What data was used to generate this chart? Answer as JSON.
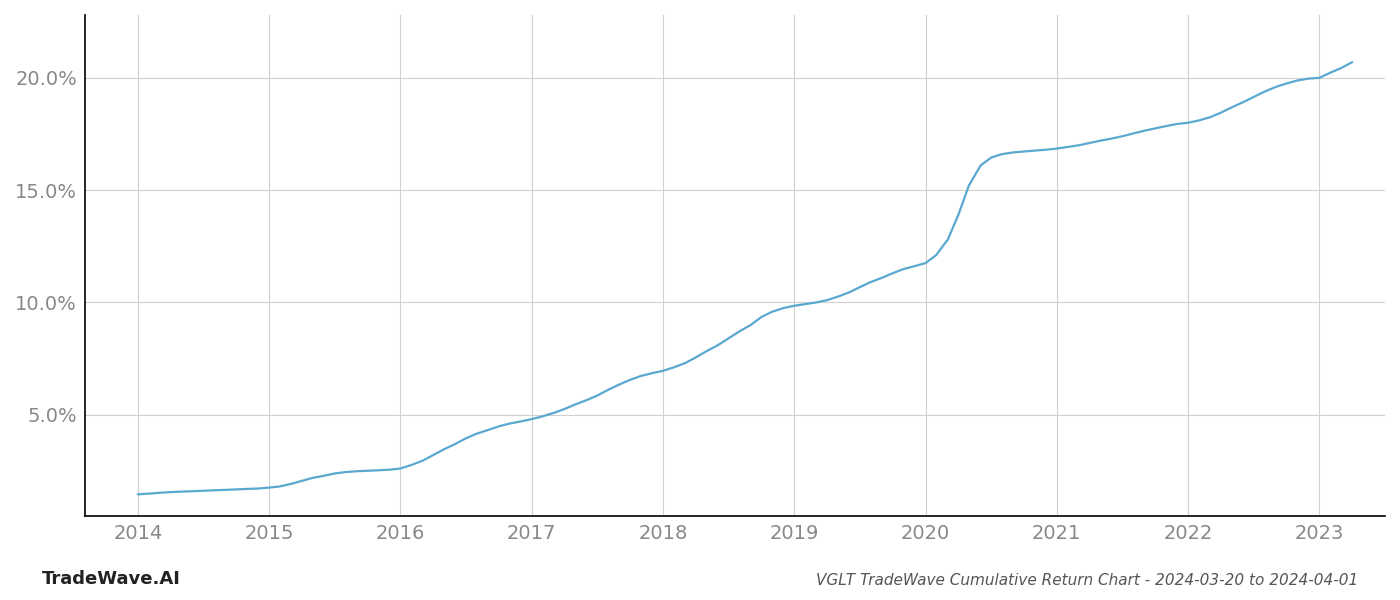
{
  "title": "VGLT TradeWave Cumulative Return Chart - 2024-03-20 to 2024-04-01",
  "watermark": "TradeWave.AI",
  "line_color": "#5aa8d0",
  "line_width": 1.6,
  "background_color": "#ffffff",
  "grid_color": "#d0d0d0",
  "x_years": [
    2014,
    2015,
    2016,
    2017,
    2018,
    2019,
    2020,
    2021,
    2022,
    2023
  ],
  "xlim": [
    2013.6,
    2023.5
  ],
  "ylim": [
    0.005,
    0.228
  ],
  "yticks": [
    0.05,
    0.1,
    0.15,
    0.2
  ],
  "ytick_labels": [
    "5.0%",
    "10.0%",
    "15.0%",
    "20.0%"
  ],
  "data_x": [
    2014.0,
    2014.08,
    2014.17,
    2014.25,
    2014.33,
    2014.42,
    2014.5,
    2014.58,
    2014.67,
    2014.75,
    2014.83,
    2014.92,
    2015.0,
    2015.08,
    2015.17,
    2015.25,
    2015.33,
    2015.42,
    2015.5,
    2015.58,
    2015.67,
    2015.75,
    2015.83,
    2015.92,
    2016.0,
    2016.08,
    2016.17,
    2016.25,
    2016.33,
    2016.42,
    2016.5,
    2016.58,
    2016.67,
    2016.75,
    2016.83,
    2016.92,
    2017.0,
    2017.08,
    2017.17,
    2017.25,
    2017.33,
    2017.42,
    2017.5,
    2017.58,
    2017.67,
    2017.75,
    2017.83,
    2017.92,
    2018.0,
    2018.08,
    2018.17,
    2018.25,
    2018.33,
    2018.42,
    2018.5,
    2018.58,
    2018.67,
    2018.75,
    2018.83,
    2018.92,
    2019.0,
    2019.08,
    2019.17,
    2019.25,
    2019.33,
    2019.42,
    2019.5,
    2019.58,
    2019.67,
    2019.75,
    2019.83,
    2019.92,
    2020.0,
    2020.08,
    2020.17,
    2020.25,
    2020.33,
    2020.42,
    2020.5,
    2020.58,
    2020.67,
    2020.75,
    2020.83,
    2020.92,
    2021.0,
    2021.08,
    2021.17,
    2021.25,
    2021.33,
    2021.42,
    2021.5,
    2021.58,
    2021.67,
    2021.75,
    2021.83,
    2021.92,
    2022.0,
    2022.08,
    2022.17,
    2022.25,
    2022.33,
    2022.42,
    2022.5,
    2022.58,
    2022.67,
    2022.75,
    2022.83,
    2022.92,
    2023.0,
    2023.08,
    2023.17,
    2023.25
  ],
  "data_y": [
    0.0145,
    0.0148,
    0.0152,
    0.0155,
    0.0157,
    0.0159,
    0.0161,
    0.0163,
    0.0165,
    0.0167,
    0.0169,
    0.0171,
    0.0175,
    0.018,
    0.0192,
    0.0205,
    0.0218,
    0.0228,
    0.0238,
    0.0244,
    0.0248,
    0.025,
    0.0252,
    0.0255,
    0.026,
    0.0275,
    0.0295,
    0.032,
    0.0345,
    0.037,
    0.0395,
    0.0415,
    0.0432,
    0.0448,
    0.046,
    0.047,
    0.048,
    0.0492,
    0.0508,
    0.0525,
    0.0545,
    0.0565,
    0.0585,
    0.061,
    0.0635,
    0.0655,
    0.0672,
    0.0685,
    0.0695,
    0.071,
    0.073,
    0.0755,
    0.0782,
    0.081,
    0.084,
    0.087,
    0.09,
    0.0935,
    0.0958,
    0.0975,
    0.0985,
    0.0992,
    0.1,
    0.101,
    0.1025,
    0.1045,
    0.1068,
    0.109,
    0.111,
    0.113,
    0.1148,
    0.1162,
    0.1175,
    0.121,
    0.128,
    0.139,
    0.152,
    0.161,
    0.1645,
    0.166,
    0.1668,
    0.1672,
    0.1676,
    0.168,
    0.1685,
    0.1692,
    0.17,
    0.171,
    0.172,
    0.173,
    0.174,
    0.1752,
    0.1765,
    0.1775,
    0.1785,
    0.1795,
    0.18,
    0.181,
    0.1825,
    0.1845,
    0.1868,
    0.1892,
    0.1915,
    0.1938,
    0.196,
    0.1975,
    0.1988,
    0.1997,
    0.2,
    0.2022,
    0.2045,
    0.207
  ],
  "xlabel_fontsize": 14,
  "ylabel_fontsize": 14,
  "title_fontsize": 11,
  "watermark_fontsize": 13,
  "tick_color": "#888888",
  "left_spine_color": "#000000",
  "bottom_spine_color": "#000000"
}
